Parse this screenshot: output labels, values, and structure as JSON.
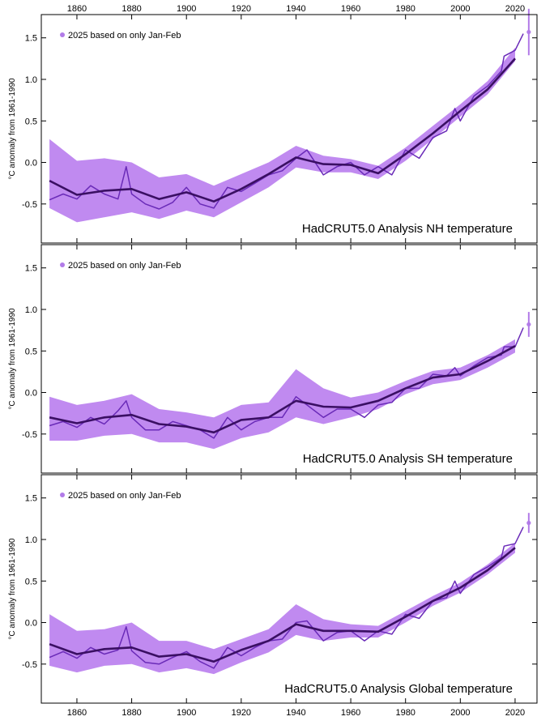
{
  "colors": {
    "band": "#c08af0",
    "annual": "#6a2bb8",
    "smooth": "#3a0f63",
    "marker": "#b27be8",
    "axis": "#000000"
  },
  "x_axis_ticks": [
    "1860",
    "1880",
    "1900",
    "1920",
    "1940",
    "1960",
    "1980",
    "2000",
    "2020"
  ],
  "chart_data": [
    {
      "type": "line",
      "title": "HadCRUT5.0 Analysis NH temperature",
      "ylabel": "°C anomaly from 1961-1990",
      "legend": "2025 based on only Jan-Feb",
      "legend_placement": "top-left",
      "xlim": [
        1847,
        2028
      ],
      "ylim": [
        -0.97,
        1.78
      ],
      "y_ticks": [
        "-0.5",
        "0.0",
        "0.5",
        "1.0",
        "1.5"
      ],
      "smooth": [
        [
          1850,
          -0.22
        ],
        [
          1860,
          -0.39
        ],
        [
          1870,
          -0.34
        ],
        [
          1880,
          -0.32
        ],
        [
          1890,
          -0.44
        ],
        [
          1900,
          -0.36
        ],
        [
          1910,
          -0.47
        ],
        [
          1920,
          -0.32
        ],
        [
          1930,
          -0.14
        ],
        [
          1940,
          0.06
        ],
        [
          1950,
          -0.02
        ],
        [
          1960,
          -0.03
        ],
        [
          1970,
          -0.13
        ],
        [
          1980,
          0.1
        ],
        [
          1990,
          0.35
        ],
        [
          2000,
          0.62
        ],
        [
          2010,
          0.88
        ],
        [
          2020,
          1.25
        ]
      ],
      "band": [
        [
          1850,
          -0.55,
          0.28
        ],
        [
          1860,
          -0.72,
          0.02
        ],
        [
          1870,
          -0.66,
          0.05
        ],
        [
          1880,
          -0.6,
          0.0
        ],
        [
          1890,
          -0.68,
          -0.18
        ],
        [
          1900,
          -0.58,
          -0.14
        ],
        [
          1910,
          -0.66,
          -0.28
        ],
        [
          1920,
          -0.48,
          -0.14
        ],
        [
          1930,
          -0.3,
          0.0
        ],
        [
          1940,
          -0.06,
          0.2
        ],
        [
          1950,
          -0.12,
          0.08
        ],
        [
          1960,
          -0.12,
          0.04
        ],
        [
          1970,
          -0.2,
          -0.04
        ],
        [
          1980,
          0.02,
          0.18
        ],
        [
          1990,
          0.28,
          0.44
        ],
        [
          2000,
          0.55,
          0.7
        ],
        [
          2010,
          0.82,
          0.98
        ],
        [
          2020,
          1.22,
          1.38
        ]
      ],
      "annual": [
        [
          1850,
          -0.45
        ],
        [
          1855,
          -0.38
        ],
        [
          1860,
          -0.44
        ],
        [
          1865,
          -0.28
        ],
        [
          1870,
          -0.38
        ],
        [
          1875,
          -0.44
        ],
        [
          1878,
          -0.05
        ],
        [
          1880,
          -0.38
        ],
        [
          1885,
          -0.5
        ],
        [
          1890,
          -0.56
        ],
        [
          1895,
          -0.48
        ],
        [
          1900,
          -0.3
        ],
        [
          1905,
          -0.5
        ],
        [
          1910,
          -0.55
        ],
        [
          1915,
          -0.3
        ],
        [
          1920,
          -0.35
        ],
        [
          1925,
          -0.25
        ],
        [
          1930,
          -0.15
        ],
        [
          1935,
          -0.1
        ],
        [
          1940,
          0.05
        ],
        [
          1944,
          0.15
        ],
        [
          1950,
          -0.15
        ],
        [
          1955,
          -0.05
        ],
        [
          1960,
          0.0
        ],
        [
          1965,
          -0.15
        ],
        [
          1970,
          -0.05
        ],
        [
          1975,
          -0.15
        ],
        [
          1980,
          0.15
        ],
        [
          1985,
          0.05
        ],
        [
          1990,
          0.3
        ],
        [
          1995,
          0.38
        ],
        [
          1998,
          0.65
        ],
        [
          2000,
          0.5
        ],
        [
          2005,
          0.8
        ],
        [
          2010,
          0.92
        ],
        [
          2015,
          1.1
        ],
        [
          2016,
          1.28
        ],
        [
          2020,
          1.35
        ],
        [
          2023,
          1.55
        ]
      ],
      "point_2025": {
        "x": 2025,
        "y": 1.57,
        "err": 0.28
      }
    },
    {
      "type": "line",
      "title": "HadCRUT5.0 Analysis SH temperature",
      "ylabel": "°C anomaly from 1961-1990",
      "legend": "2025 based on only Jan-Feb",
      "legend_placement": "top-left",
      "xlim": [
        1847,
        2028
      ],
      "ylim": [
        -0.97,
        1.78
      ],
      "y_ticks": [
        "-0.5",
        "0.0",
        "0.5",
        "1.0",
        "1.5"
      ],
      "smooth": [
        [
          1850,
          -0.3
        ],
        [
          1860,
          -0.37
        ],
        [
          1870,
          -0.3
        ],
        [
          1880,
          -0.27
        ],
        [
          1890,
          -0.38
        ],
        [
          1900,
          -0.41
        ],
        [
          1910,
          -0.48
        ],
        [
          1920,
          -0.33
        ],
        [
          1930,
          -0.3
        ],
        [
          1940,
          -0.1
        ],
        [
          1950,
          -0.17
        ],
        [
          1960,
          -0.18
        ],
        [
          1970,
          -0.1
        ],
        [
          1980,
          0.05
        ],
        [
          1990,
          0.18
        ],
        [
          2000,
          0.22
        ],
        [
          2010,
          0.38
        ],
        [
          2020,
          0.56
        ]
      ],
      "band": [
        [
          1850,
          -0.58,
          -0.05
        ],
        [
          1860,
          -0.58,
          -0.15
        ],
        [
          1870,
          -0.52,
          -0.1
        ],
        [
          1880,
          -0.5,
          -0.02
        ],
        [
          1890,
          -0.6,
          -0.2
        ],
        [
          1900,
          -0.6,
          -0.24
        ],
        [
          1910,
          -0.68,
          -0.3
        ],
        [
          1920,
          -0.55,
          -0.15
        ],
        [
          1930,
          -0.48,
          -0.12
        ],
        [
          1940,
          -0.3,
          0.28
        ],
        [
          1950,
          -0.38,
          0.05
        ],
        [
          1960,
          -0.3,
          -0.06
        ],
        [
          1970,
          -0.2,
          0.0
        ],
        [
          1980,
          -0.02,
          0.14
        ],
        [
          1990,
          0.1,
          0.26
        ],
        [
          2000,
          0.15,
          0.3
        ],
        [
          2010,
          0.3,
          0.45
        ],
        [
          2020,
          0.48,
          0.64
        ]
      ],
      "annual": [
        [
          1850,
          -0.4
        ],
        [
          1855,
          -0.35
        ],
        [
          1860,
          -0.42
        ],
        [
          1865,
          -0.3
        ],
        [
          1870,
          -0.38
        ],
        [
          1875,
          -0.22
        ],
        [
          1878,
          -0.1
        ],
        [
          1880,
          -0.3
        ],
        [
          1885,
          -0.45
        ],
        [
          1890,
          -0.45
        ],
        [
          1895,
          -0.35
        ],
        [
          1900,
          -0.4
        ],
        [
          1905,
          -0.45
        ],
        [
          1910,
          -0.55
        ],
        [
          1915,
          -0.3
        ],
        [
          1920,
          -0.45
        ],
        [
          1925,
          -0.35
        ],
        [
          1930,
          -0.3
        ],
        [
          1935,
          -0.3
        ],
        [
          1940,
          -0.05
        ],
        [
          1944,
          -0.15
        ],
        [
          1950,
          -0.3
        ],
        [
          1955,
          -0.2
        ],
        [
          1960,
          -0.2
        ],
        [
          1965,
          -0.3
        ],
        [
          1970,
          -0.15
        ],
        [
          1975,
          -0.12
        ],
        [
          1980,
          0.05
        ],
        [
          1985,
          0.05
        ],
        [
          1990,
          0.22
        ],
        [
          1995,
          0.2
        ],
        [
          1998,
          0.3
        ],
        [
          2000,
          0.2
        ],
        [
          2005,
          0.32
        ],
        [
          2010,
          0.42
        ],
        [
          2015,
          0.45
        ],
        [
          2016,
          0.55
        ],
        [
          2020,
          0.55
        ],
        [
          2023,
          0.78
        ]
      ],
      "point_2025": {
        "x": 2025,
        "y": 0.82,
        "err": 0.15
      }
    },
    {
      "type": "line",
      "title": "HadCRUT5.0 Analysis Global temperature",
      "ylabel": "°C anomaly from 1961-1990",
      "legend": "2025 based on only Jan-Feb",
      "legend_placement": "top-left",
      "xlim": [
        1847,
        2028
      ],
      "ylim": [
        -0.97,
        1.78
      ],
      "y_ticks": [
        "-0.5",
        "0.0",
        "0.5",
        "1.0",
        "1.5"
      ],
      "smooth": [
        [
          1850,
          -0.26
        ],
        [
          1860,
          -0.38
        ],
        [
          1870,
          -0.32
        ],
        [
          1880,
          -0.3
        ],
        [
          1890,
          -0.41
        ],
        [
          1900,
          -0.38
        ],
        [
          1910,
          -0.47
        ],
        [
          1920,
          -0.33
        ],
        [
          1930,
          -0.22
        ],
        [
          1940,
          -0.02
        ],
        [
          1950,
          -0.1
        ],
        [
          1960,
          -0.1
        ],
        [
          1970,
          -0.11
        ],
        [
          1980,
          0.07
        ],
        [
          1990,
          0.26
        ],
        [
          2000,
          0.42
        ],
        [
          2010,
          0.63
        ],
        [
          2020,
          0.9
        ]
      ],
      "band": [
        [
          1850,
          -0.52,
          0.1
        ],
        [
          1860,
          -0.6,
          -0.1
        ],
        [
          1870,
          -0.52,
          -0.08
        ],
        [
          1880,
          -0.5,
          0.0
        ],
        [
          1890,
          -0.6,
          -0.22
        ],
        [
          1900,
          -0.55,
          -0.22
        ],
        [
          1910,
          -0.62,
          -0.32
        ],
        [
          1920,
          -0.48,
          -0.2
        ],
        [
          1930,
          -0.36,
          -0.08
        ],
        [
          1940,
          -0.15,
          0.22
        ],
        [
          1950,
          -0.22,
          0.04
        ],
        [
          1960,
          -0.18,
          -0.02
        ],
        [
          1970,
          -0.18,
          -0.04
        ],
        [
          1980,
          0.0,
          0.14
        ],
        [
          1990,
          0.2,
          0.32
        ],
        [
          2000,
          0.36,
          0.48
        ],
        [
          2010,
          0.58,
          0.7
        ],
        [
          2020,
          0.84,
          0.96
        ]
      ],
      "annual": [
        [
          1850,
          -0.42
        ],
        [
          1855,
          -0.35
        ],
        [
          1860,
          -0.43
        ],
        [
          1865,
          -0.3
        ],
        [
          1870,
          -0.38
        ],
        [
          1875,
          -0.33
        ],
        [
          1878,
          -0.05
        ],
        [
          1880,
          -0.34
        ],
        [
          1885,
          -0.48
        ],
        [
          1890,
          -0.5
        ],
        [
          1895,
          -0.42
        ],
        [
          1900,
          -0.35
        ],
        [
          1905,
          -0.47
        ],
        [
          1910,
          -0.55
        ],
        [
          1915,
          -0.3
        ],
        [
          1920,
          -0.4
        ],
        [
          1925,
          -0.3
        ],
        [
          1930,
          -0.22
        ],
        [
          1935,
          -0.2
        ],
        [
          1940,
          0.0
        ],
        [
          1944,
          0.02
        ],
        [
          1950,
          -0.22
        ],
        [
          1955,
          -0.12
        ],
        [
          1960,
          -0.1
        ],
        [
          1965,
          -0.22
        ],
        [
          1970,
          -0.1
        ],
        [
          1975,
          -0.14
        ],
        [
          1980,
          0.1
        ],
        [
          1985,
          0.05
        ],
        [
          1990,
          0.26
        ],
        [
          1995,
          0.3
        ],
        [
          1998,
          0.5
        ],
        [
          2000,
          0.35
        ],
        [
          2005,
          0.58
        ],
        [
          2010,
          0.67
        ],
        [
          2015,
          0.78
        ],
        [
          2016,
          0.92
        ],
        [
          2020,
          0.95
        ],
        [
          2023,
          1.15
        ]
      ],
      "point_2025": {
        "x": 2025,
        "y": 1.2,
        "err": 0.12
      }
    }
  ]
}
